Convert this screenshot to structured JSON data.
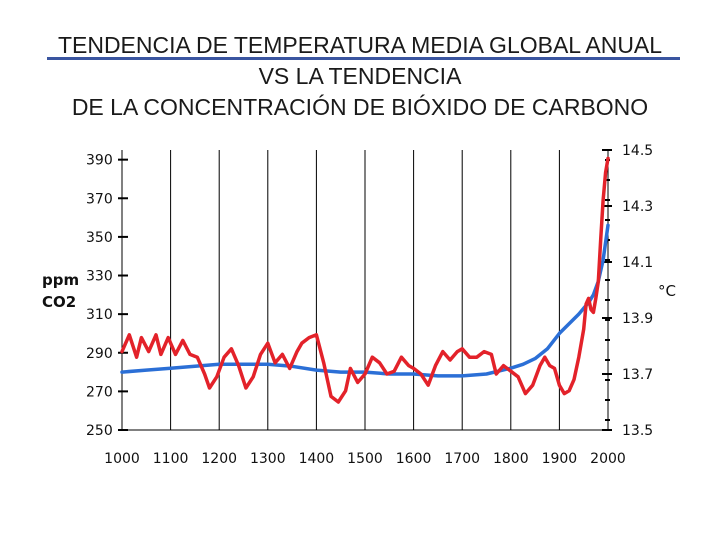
{
  "title": {
    "line1": "TENDENCIA DE TEMPERATURA MEDIA GLOBAL ANUAL",
    "line2": "VS LA TENDENCIA",
    "line3": "DE LA CONCENTRACIÓN DE BIÓXIDO DE CARBONO"
  },
  "colors": {
    "co2": "#2b6fd6",
    "temperature": "#e3222a",
    "grid": "#000000",
    "title_rule": "#3a55a0"
  },
  "chart_data": {
    "type": "line",
    "title": "TENDENCIA DE TEMPERATURA MEDIA GLOBAL ANUAL VS LA TENDENCIA DE LA CONCENTRACIÓN DE BIÓXIDO DE CARBONO",
    "x_ticks": [
      "1000",
      "1100",
      "1200",
      "1300",
      "1400",
      "1500",
      "1600",
      "1700",
      "1800",
      "1900",
      "2000"
    ],
    "xlim": [
      1000,
      2000
    ],
    "left_axis": {
      "label_line1": "ppm",
      "label_line2": "CO2",
      "ticks": [
        "250",
        "270",
        "290",
        "310",
        "330",
        "350",
        "370",
        "390"
      ],
      "ylim": [
        250,
        395
      ]
    },
    "right_axis": {
      "label": "°C",
      "ticks": [
        "13.5",
        "13.7",
        "13.9",
        "14.1",
        "14.3",
        "14.5"
      ],
      "ylim": [
        13.5,
        14.5
      ]
    },
    "grid": true,
    "series": [
      {
        "axis": "left",
        "color": "#2b6fd6",
        "x": [
          1000,
          1050,
          1100,
          1150,
          1200,
          1250,
          1300,
          1350,
          1400,
          1450,
          1500,
          1550,
          1600,
          1650,
          1700,
          1750,
          1800,
          1825,
          1850,
          1875,
          1900,
          1920,
          1940,
          1950,
          1960,
          1970,
          1980,
          1990,
          2000
        ],
        "y": [
          280,
          281,
          282,
          283,
          284,
          284,
          284,
          283,
          281,
          280,
          280,
          279,
          279,
          278,
          278,
          279,
          282,
          284,
          287,
          292,
          300,
          305,
          310,
          313,
          316,
          320,
          327,
          338,
          356
        ]
      },
      {
        "axis": "right",
        "color": "#e3222a",
        "x": [
          1000,
          1015,
          1030,
          1040,
          1055,
          1070,
          1080,
          1095,
          1110,
          1125,
          1140,
          1155,
          1170,
          1180,
          1195,
          1210,
          1225,
          1240,
          1255,
          1270,
          1285,
          1300,
          1315,
          1330,
          1345,
          1360,
          1370,
          1385,
          1400,
          1415,
          1430,
          1445,
          1460,
          1470,
          1485,
          1500,
          1515,
          1530,
          1545,
          1560,
          1575,
          1590,
          1600,
          1615,
          1630,
          1645,
          1660,
          1675,
          1690,
          1700,
          1715,
          1730,
          1745,
          1760,
          1770,
          1785,
          1800,
          1815,
          1830,
          1845,
          1860,
          1870,
          1880,
          1890,
          1900,
          1910,
          1920,
          1930,
          1940,
          1950,
          1955,
          1960,
          1965,
          1970,
          1975,
          1980,
          1985,
          1990,
          1995,
          2000
        ],
        "y": [
          13.78,
          13.84,
          13.76,
          13.83,
          13.78,
          13.84,
          13.77,
          13.83,
          13.77,
          13.82,
          13.77,
          13.76,
          13.7,
          13.65,
          13.69,
          13.76,
          13.79,
          13.73,
          13.65,
          13.69,
          13.77,
          13.81,
          13.74,
          13.77,
          13.72,
          13.78,
          13.81,
          13.83,
          13.84,
          13.74,
          13.62,
          13.6,
          13.64,
          13.72,
          13.67,
          13.7,
          13.76,
          13.74,
          13.7,
          13.71,
          13.76,
          13.73,
          13.72,
          13.7,
          13.66,
          13.73,
          13.78,
          13.75,
          13.78,
          13.79,
          13.76,
          13.76,
          13.78,
          13.77,
          13.7,
          13.73,
          13.71,
          13.69,
          13.63,
          13.66,
          13.73,
          13.76,
          13.73,
          13.72,
          13.66,
          13.63,
          13.64,
          13.68,
          13.76,
          13.86,
          13.95,
          13.97,
          13.93,
          13.92,
          13.97,
          14.03,
          14.18,
          14.32,
          14.42,
          14.47
        ]
      }
    ]
  }
}
